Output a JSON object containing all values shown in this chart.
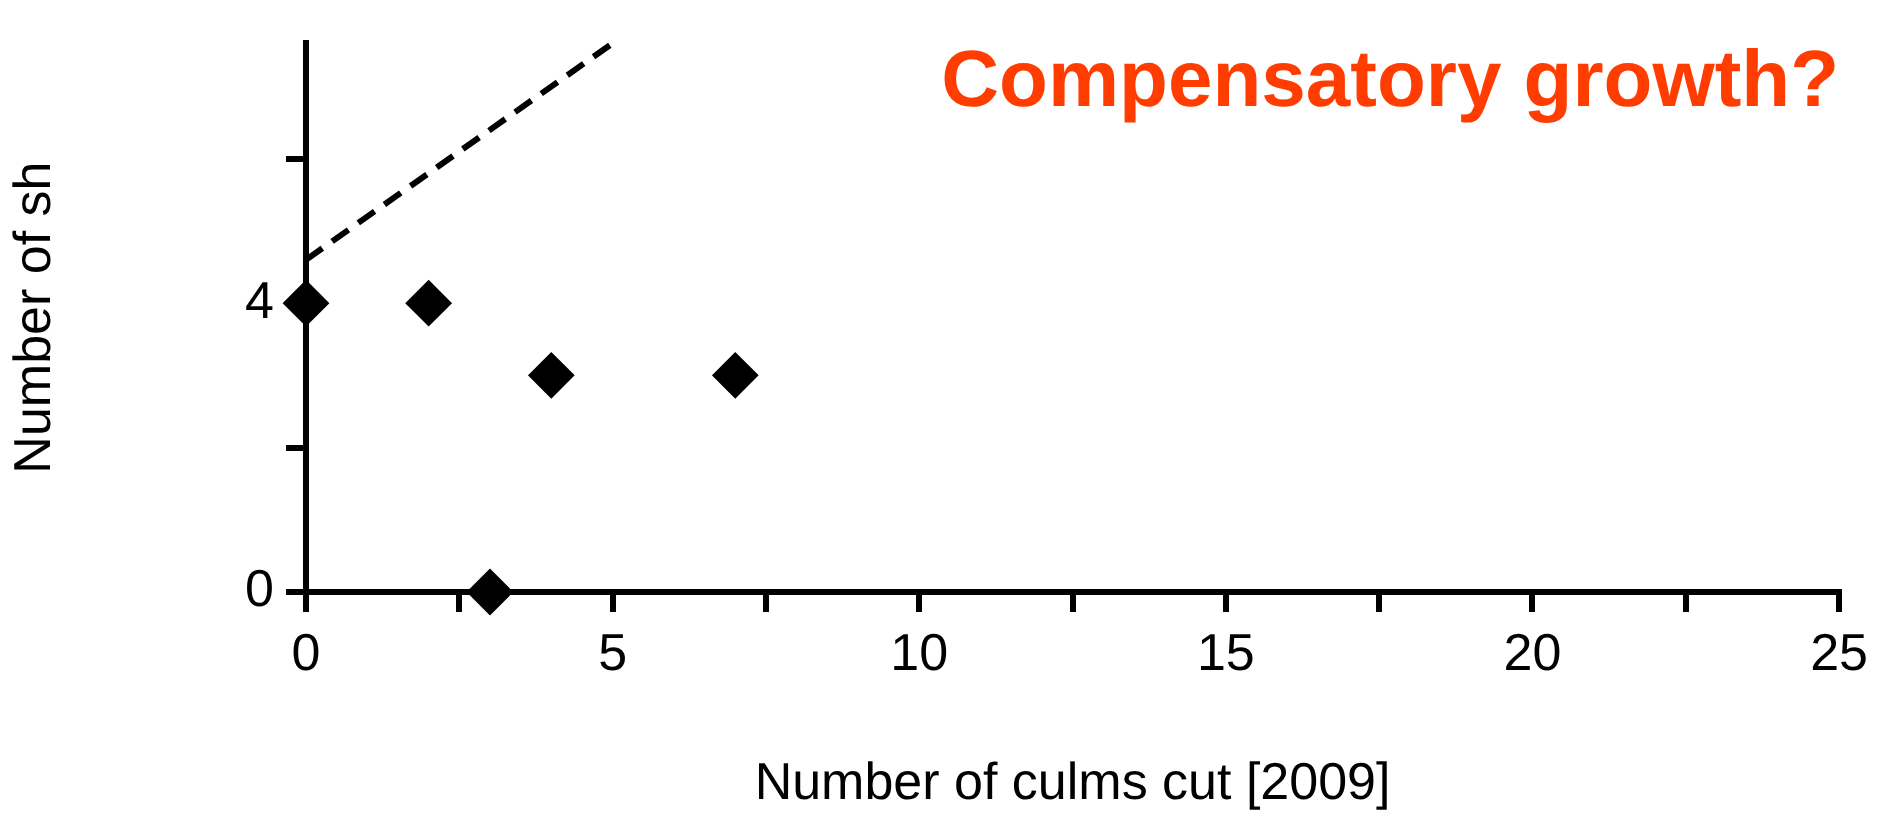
{
  "chart_data": {
    "type": "scatter",
    "xlabel": "Number of culms cut [2009]",
    "ylabel": "Number of sh",
    "annotations": [
      "Compensatory growth?"
    ],
    "xlim": [
      0,
      25
    ],
    "xticks": [
      0,
      {
        "value": 2.5,
        "label": null
      },
      5,
      {
        "value": 7.5,
        "label": null
      },
      10,
      {
        "value": 12.5,
        "label": null
      },
      15,
      {
        "value": 17.5,
        "label": null
      },
      20,
      {
        "value": 22.5,
        "label": null
      },
      25
    ],
    "ylim": [
      0,
      7.6
    ],
    "yticks": [
      0,
      {
        "value": 2,
        "label": null
      },
      4,
      {
        "value": 6,
        "label": null
      }
    ],
    "grid": false,
    "legend": false,
    "marker": "diamond",
    "series": [
      {
        "type": "scatter",
        "color": "#000000",
        "x": [
          0,
          2,
          3,
          4,
          7
        ],
        "values": [
          4,
          4,
          0,
          3,
          3
        ]
      },
      {
        "type": "line",
        "color": "#000000",
        "line_style": "dashed",
        "marker": "none",
        "x": [
          0,
          5
        ],
        "values": [
          4.6,
          7.6
        ]
      }
    ]
  }
}
